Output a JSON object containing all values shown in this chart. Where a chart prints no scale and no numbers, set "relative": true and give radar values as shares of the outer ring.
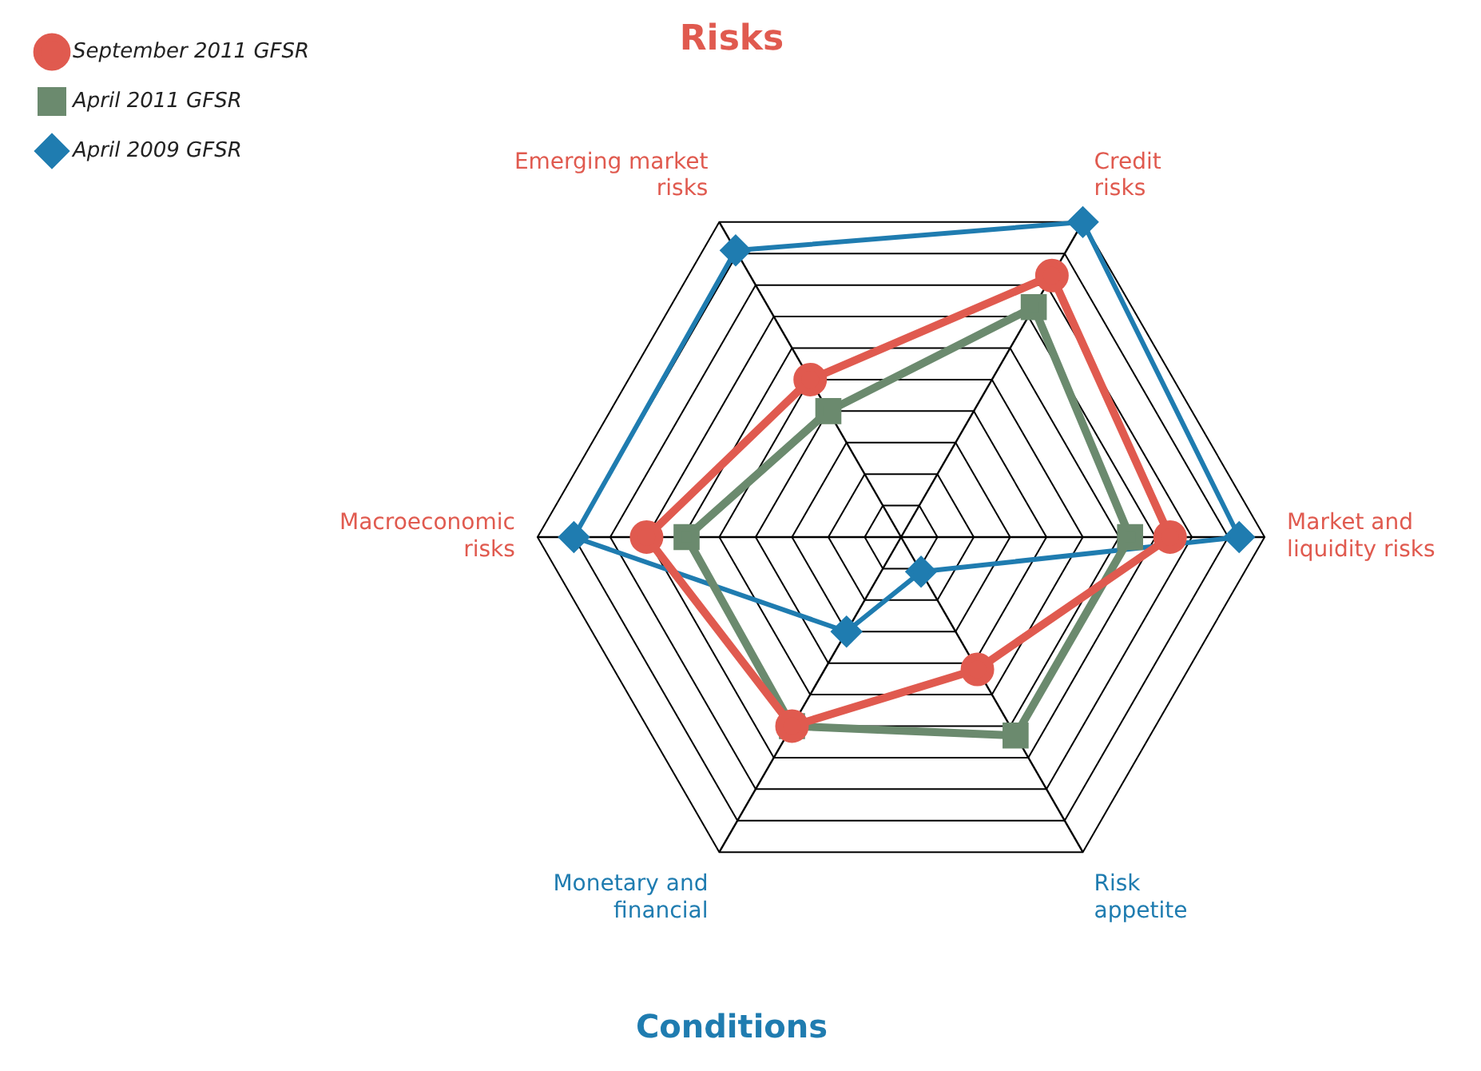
{
  "chart_data": {
    "type": "radar",
    "title": "Risks",
    "subtitle": "Conditions",
    "relative": true,
    "categories": [
      "Credit risks",
      "Market and liquidity risks",
      "Risk appetite",
      "Monetary and financial",
      "Macroeconomic risks",
      "Emerging market risks"
    ],
    "series": [
      {
        "name": "September 2011 GFSR",
        "color": "#e05a4f",
        "marker": "circle",
        "values": [
          0.83,
          0.74,
          0.42,
          0.6,
          0.7,
          0.5
        ]
      },
      {
        "name": "April 2011 GFSR",
        "color": "#6b8a6e",
        "marker": "square",
        "values": [
          0.73,
          0.63,
          0.63,
          0.6,
          0.59,
          0.4
        ]
      },
      {
        "name": "April 2009 GFSR",
        "color": "#1f7cb0",
        "marker": "diamond",
        "values": [
          1.0,
          0.93,
          0.11,
          0.3,
          0.9,
          0.91
        ]
      }
    ],
    "grid": true,
    "legend": "top left"
  }
}
